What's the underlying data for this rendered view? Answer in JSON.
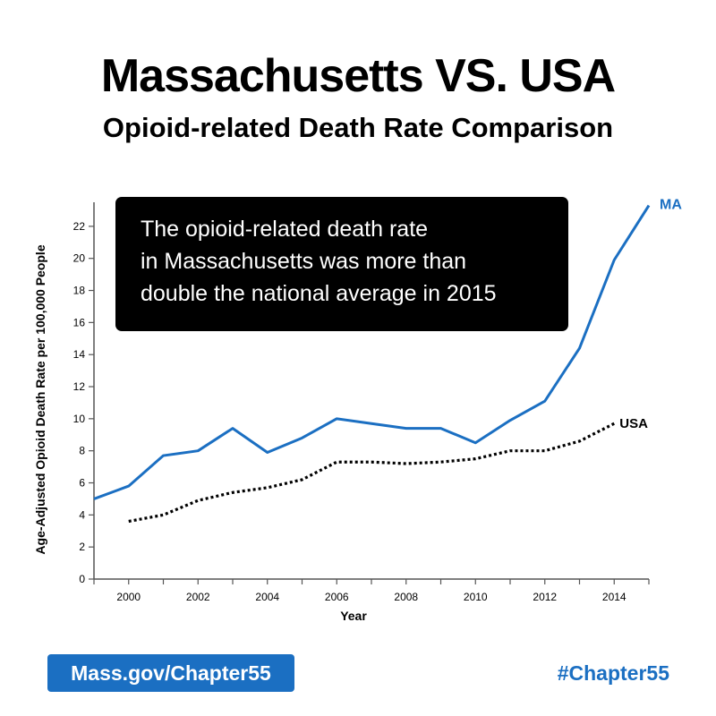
{
  "header": {
    "title": "Massachusetts VS. USA",
    "subtitle": "Opioid-related Death Rate Comparison"
  },
  "callout": {
    "lines": [
      "The opioid-related death rate",
      "in Massachusetts was more than",
      "double the national average in 2015"
    ]
  },
  "footer": {
    "link": "Mass.gov/Chapter55",
    "hashtag": "#Chapter55"
  },
  "colors": {
    "ma": "#1b6fc2",
    "usa": "#000000",
    "accent": "#1b6fc2"
  },
  "chart_data": {
    "type": "line",
    "xlabel": "Year",
    "ylabel": "Age-Adjusted Opioid Death Rate per 100,000 People",
    "xlim": [
      1999,
      2015
    ],
    "ylim": [
      0,
      23.5
    ],
    "xticks": [
      2000,
      2002,
      2004,
      2006,
      2008,
      2010,
      2012,
      2014
    ],
    "yticks": [
      0,
      2,
      4,
      6,
      8,
      10,
      12,
      14,
      16,
      18,
      20,
      22
    ],
    "grid": false,
    "series": [
      {
        "name": "MA",
        "style": "solid",
        "x": [
          1999,
          2000,
          2001,
          2002,
          2003,
          2004,
          2005,
          2006,
          2007,
          2008,
          2009,
          2010,
          2011,
          2012,
          2013,
          2014,
          2015
        ],
        "values": [
          5.0,
          5.8,
          7.7,
          8.0,
          9.4,
          7.9,
          8.8,
          10.0,
          9.7,
          9.4,
          9.4,
          8.5,
          9.9,
          11.1,
          14.4,
          19.9,
          23.3
        ]
      },
      {
        "name": "USA",
        "style": "dotted",
        "x": [
          2000,
          2001,
          2002,
          2003,
          2004,
          2005,
          2006,
          2007,
          2008,
          2009,
          2010,
          2011,
          2012,
          2013,
          2014
        ],
        "values": [
          3.6,
          4.0,
          4.9,
          5.4,
          5.7,
          6.2,
          7.3,
          7.3,
          7.2,
          7.3,
          7.5,
          8.0,
          8.0,
          8.6,
          9.7
        ]
      }
    ]
  }
}
